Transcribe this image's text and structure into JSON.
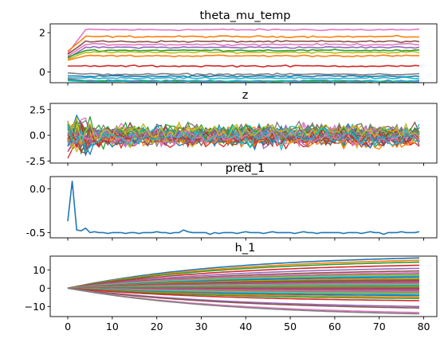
{
  "colors": [
    "#1f77b4",
    "#ff7f0e",
    "#2ca02c",
    "#d62728",
    "#9467bd",
    "#8c564b",
    "#e377c2",
    "#7f7f7f",
    "#bcbd22",
    "#17becf"
  ],
  "chart_data": [
    {
      "type": "line",
      "title": "theta_mu_temp",
      "x_range": [
        0,
        79
      ],
      "ylim": [
        -0.55,
        2.45
      ],
      "yticks": [
        0,
        2
      ],
      "ytick_labels": [
        "0",
        "2"
      ],
      "series": [
        {
          "color_index": 6,
          "start": 0.95,
          "level": 2.15
        },
        {
          "color_index": 1,
          "start": 1.05,
          "level": 1.8
        },
        {
          "color_index": 5,
          "start": 0.9,
          "level": 1.55
        },
        {
          "color_index": 6,
          "start": 0.8,
          "level": 1.4
        },
        {
          "color_index": 4,
          "start": 0.7,
          "level": 1.25
        },
        {
          "color_index": 2,
          "start": 0.75,
          "level": 1.1
        },
        {
          "color_index": 8,
          "start": 0.65,
          "level": 1.0
        },
        {
          "color_index": 1,
          "start": 0.6,
          "level": 0.82
        },
        {
          "color_index": 3,
          "start": 0.3,
          "level": 0.3
        },
        {
          "color_index": 7,
          "start": -0.05,
          "level": -0.12
        },
        {
          "color_index": 0,
          "start": -0.2,
          "level": -0.22
        },
        {
          "color_index": 9,
          "start": -0.3,
          "level": -0.32
        },
        {
          "color_index": 4,
          "start": -0.35,
          "level": -0.45
        },
        {
          "color_index": 2,
          "start": -0.4,
          "level": -0.48
        },
        {
          "color_index": 9,
          "start": -0.45,
          "level": -0.5
        }
      ]
    },
    {
      "type": "line",
      "title": "z",
      "x_range": [
        0,
        79
      ],
      "ylim": [
        -2.7,
        3.1
      ],
      "yticks": [
        2.5,
        0.0,
        -2.5
      ],
      "ytick_labels": [
        "2.5",
        "0.0",
        "-2.5"
      ],
      "series_count": 40,
      "noise_amplitude": 1.0
    },
    {
      "type": "line",
      "title": "pred_1",
      "x_range": [
        0,
        79
      ],
      "ylim": [
        -0.56,
        0.14
      ],
      "yticks": [
        0.0,
        -0.5
      ],
      "ytick_labels": [
        "0.0",
        "-0.5"
      ],
      "series": [
        {
          "color_index": 0,
          "values": [
            -0.37,
            0.09,
            -0.47,
            -0.48,
            -0.45,
            -0.5,
            -0.49,
            -0.5,
            -0.5,
            -0.51,
            -0.5,
            -0.5,
            -0.5,
            -0.51,
            -0.5,
            -0.5,
            -0.51,
            -0.5,
            -0.5,
            -0.5,
            -0.49,
            -0.5,
            -0.5,
            -0.51,
            -0.5,
            -0.5,
            -0.47,
            -0.49,
            -0.5,
            -0.5,
            -0.5,
            -0.5,
            -0.52,
            -0.5,
            -0.51,
            -0.5,
            -0.5,
            -0.5,
            -0.51,
            -0.5,
            -0.49,
            -0.5,
            -0.5,
            -0.5,
            -0.51,
            -0.5,
            -0.49,
            -0.5,
            -0.5,
            -0.5,
            -0.5,
            -0.51,
            -0.5,
            -0.49,
            -0.5,
            -0.5,
            -0.51,
            -0.5,
            -0.5,
            -0.5,
            -0.5,
            -0.5,
            -0.51,
            -0.5,
            -0.5,
            -0.5,
            -0.51,
            -0.5,
            -0.49,
            -0.5,
            -0.5,
            -0.52,
            -0.5,
            -0.5,
            -0.5,
            -0.49,
            -0.5,
            -0.5,
            -0.5,
            -0.49
          ]
        }
      ]
    },
    {
      "type": "line",
      "title": "h_1",
      "x_range": [
        0,
        79
      ],
      "ylim": [
        -15.5,
        17.5
      ],
      "yticks": [
        10,
        0,
        -10
      ],
      "ytick_labels": [
        "10",
        "0",
        "−10"
      ],
      "xticks": [
        0,
        10,
        20,
        30,
        40,
        50,
        60,
        70,
        80
      ],
      "xtick_labels": [
        "0",
        "10",
        "20",
        "30",
        "40",
        "50",
        "60",
        "70",
        "80"
      ],
      "final_values": [
        16.5,
        15.2,
        14.2,
        12.5,
        10.8,
        9.4,
        8.5,
        7.8,
        7.2,
        6.6,
        6.0,
        5.2,
        4.6,
        4.0,
        3.5,
        3.0,
        2.6,
        2.2,
        1.8,
        1.4,
        1.0,
        0.6,
        0.2,
        -0.2,
        -0.7,
        -1.2,
        -1.7,
        -2.2,
        -2.8,
        -3.3,
        -4.0,
        -4.8,
        -5.6,
        -6.8,
        -10.0,
        -10.8,
        -13.3,
        -14.0
      ]
    }
  ]
}
